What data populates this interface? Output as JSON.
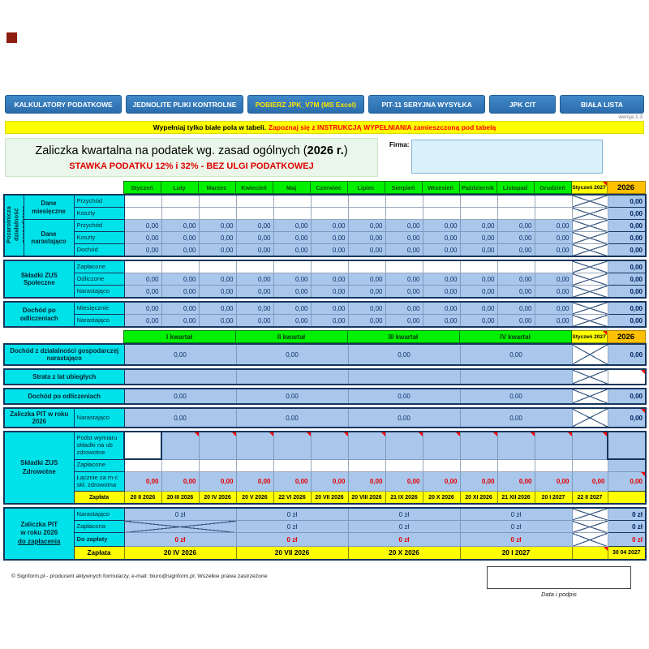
{
  "nav": {
    "buttons": [
      {
        "label": "KALKULATORY PODATKOWE",
        "accent": false
      },
      {
        "label": "JEDNOLITE PLIKI KONTROLNE",
        "accent": false
      },
      {
        "label": "POBIERZ JPK_V7M (MS Excel)",
        "accent": true
      },
      {
        "label": "PIT-11 SERYJNA WYSYŁKA",
        "accent": false
      },
      {
        "label": "JPK CIT",
        "accent": false
      },
      {
        "label": "BIAŁA LISTA",
        "accent": false
      }
    ],
    "version": "wersja 1.3"
  },
  "notice": {
    "part_black": "Wypełniaj tylko białe pola w tabeli.",
    "part_red": "Zapoznaj się z INSTRUKCJĄ WYPEŁNIANIA zamieszczoną pod tabelą"
  },
  "header": {
    "title_prefix": "Zaliczka kwartalna na podatek wg. zasad ogólnych (",
    "title_year": "2026 r.",
    "title_suffix": ")",
    "subtitle": "STAWKA PODATKU 12% i 32% - BEZ ULGI PODATKOWEJ",
    "firma_label": "Firma:",
    "firma_value": ""
  },
  "months": [
    "Styczeń",
    "Luty",
    "Marzec",
    "Kwiecień",
    "Maj",
    "Czerwiec",
    "Lipiec",
    "Sierpień",
    "Wrzesień",
    "Październik",
    "Listopad",
    "Grudzień"
  ],
  "jan2027_label": "Styczeń 2027",
  "year_total_label": "2026",
  "monthly_groups": [
    {
      "side": "Pozarolnicza działalność gospodarcza",
      "subs": [
        {
          "label": "Dane miesięczne",
          "rows": [
            {
              "label": "Przychód",
              "kind": "input",
              "values": [
                "",
                "",
                "",
                "",
                "",
                "",
                "",
                "",
                "",
                "",
                "",
                ""
              ],
              "total": "0,00"
            },
            {
              "label": "Koszty",
              "kind": "input",
              "values": [
                "",
                "",
                "",
                "",
                "",
                "",
                "",
                "",
                "",
                "",
                "",
                ""
              ],
              "total": "0,00"
            }
          ]
        },
        {
          "label": "Dane narastająco",
          "rows": [
            {
              "label": "Przychód",
              "kind": "calc",
              "values": [
                "0,00",
                "0,00",
                "0,00",
                "0,00",
                "0,00",
                "0,00",
                "0,00",
                "0,00",
                "0,00",
                "0,00",
                "0,00",
                "0,00"
              ],
              "total": "0,00"
            },
            {
              "label": "Koszty",
              "kind": "calc",
              "values": [
                "0,00",
                "0,00",
                "0,00",
                "0,00",
                "0,00",
                "0,00",
                "0,00",
                "0,00",
                "0,00",
                "0,00",
                "0,00",
                "0,00"
              ],
              "total": "0,00"
            },
            {
              "label": "Dochód",
              "kind": "calc",
              "values": [
                "0,00",
                "0,00",
                "0,00",
                "0,00",
                "0,00",
                "0,00",
                "0,00",
                "0,00",
                "0,00",
                "0,00",
                "0,00",
                "0,00"
              ],
              "total": "0,00"
            }
          ]
        }
      ]
    },
    {
      "side": "Składki ZUS Społeczne",
      "rows": [
        {
          "label": "Zapłacone",
          "kind": "input",
          "values": [
            "",
            "",
            "",
            "",
            "",
            "",
            "",
            "",
            "",
            "",
            "",
            ""
          ],
          "total": "0,00"
        },
        {
          "label": "Odliczone",
          "kind": "calc",
          "values": [
            "0,00",
            "0,00",
            "0,00",
            "0,00",
            "0,00",
            "0,00",
            "0,00",
            "0,00",
            "0,00",
            "0,00",
            "0,00",
            "0,00"
          ],
          "total": "0,00"
        },
        {
          "label": "Narastająco",
          "kind": "calc",
          "values": [
            "0,00",
            "0,00",
            "0,00",
            "0,00",
            "0,00",
            "0,00",
            "0,00",
            "0,00",
            "0,00",
            "0,00",
            "0,00",
            "0,00"
          ],
          "total": "0,00"
        }
      ]
    },
    {
      "side": "Dochód po odliczeniach",
      "rows": [
        {
          "label": "Miesięcznie",
          "kind": "calc",
          "values": [
            "0,00",
            "0,00",
            "0,00",
            "0,00",
            "0,00",
            "0,00",
            "0,00",
            "0,00",
            "0,00",
            "0,00",
            "0,00",
            "0,00"
          ],
          "total": "0,00"
        },
        {
          "label": "Narastająco",
          "kind": "calc",
          "values": [
            "0,00",
            "0,00",
            "0,00",
            "0,00",
            "0,00",
            "0,00",
            "0,00",
            "0,00",
            "0,00",
            "0,00",
            "0,00",
            "0,00"
          ],
          "total": "0,00"
        }
      ]
    }
  ],
  "quarterly": {
    "headers": [
      "I kwartał",
      "II kwartał",
      "III kwartał",
      "IV kwartał"
    ],
    "rows": [
      {
        "label": "Dochód z działalności gospodarczej narastająco",
        "kind": "calc",
        "values": [
          "0,00",
          "0,00",
          "0,00",
          "0,00"
        ],
        "total": "0,00"
      },
      {
        "label": "Strata z lat ubiegłych",
        "kind": "blue_empty",
        "values": [
          "",
          "",
          "",
          ""
        ],
        "total": ""
      },
      {
        "label": "Dochód po odliczeniach",
        "kind": "calc",
        "values": [
          "0,00",
          "0,00",
          "0,00",
          "0,00"
        ],
        "total": "0,00"
      },
      {
        "label": "Zaliczka PIT w roku 2026",
        "sublabel": "Narastająco",
        "kind": "calc",
        "values": [
          "0,00",
          "0,00",
          "0,00",
          "0,00"
        ],
        "total": "0,00"
      }
    ]
  },
  "zdrowotne": {
    "side": "Składki ZUS Zdrowotne",
    "podst_label": "Podst wymiaru składki na ub zdrowotne",
    "zaplacone_label": "Zapłacone",
    "lacznie_label": "Łącznie za m-c skł. zdrowotna",
    "lacznie_values": [
      "0,00",
      "0,00",
      "0,00",
      "0,00",
      "0,00",
      "0,00",
      "0,00",
      "0,00",
      "0,00",
      "0,00",
      "0,00",
      "0,00",
      "0,00"
    ],
    "lacznie_total": "0,00",
    "zaplata_label": "Zapłata",
    "zaplata_dates": [
      "20 II 2026",
      "20 III 2026",
      "20 IV 2026",
      "20 V 2026",
      "22 VI 2026",
      "20 VII 2026",
      "20 VIII 2026",
      "21 IX 2026",
      "20 X 2026",
      "20 XI 2026",
      "21 XII 2026",
      "20 I 2027",
      "22 II 2027"
    ]
  },
  "pit_due": {
    "side_lines": [
      "Zaliczka PIT",
      "w roku 2026",
      "do zapłacenia"
    ],
    "rows": [
      {
        "label": "Narastająco",
        "first_x": false,
        "red": false,
        "values": [
          "0 zł",
          "0 zł",
          "0 zł",
          "0 zł"
        ],
        "total": "0 zł"
      },
      {
        "label": "Zapłacona",
        "first_x": true,
        "red": false,
        "values": [
          "",
          "0 zł",
          "0 zł",
          "0 zł"
        ],
        "total": "0 zł"
      },
      {
        "label": "Do zapłaty",
        "first_x": false,
        "red": true,
        "values": [
          "0 zł",
          "0 zł",
          "0 zł",
          "0 zł"
        ],
        "total": "0 zł"
      }
    ],
    "zaplata_label": "Zapłata",
    "zaplata_dates": [
      "20 IV 2026",
      "20 VII 2026",
      "20 X 2026",
      "20 I 2027"
    ],
    "zaplata_total": "30 04 2027"
  },
  "footer": {
    "copyright": "© Signform.pl - producent aktywnych formularzy, e-mail: biuro@signform.pl; Wszelkie prawa zastrzeżone",
    "signature_caption": "Data i podpis"
  },
  "colors": {
    "button_blue": "#2E74B5",
    "label_cyan": "#00E2EA",
    "cell_blue": "#A9C7EB",
    "header_green": "#00F000",
    "year_gold": "#FFC000",
    "yellow": "#FFFF00",
    "alert_red": "#FF0000",
    "border_navy": "#16365D"
  }
}
